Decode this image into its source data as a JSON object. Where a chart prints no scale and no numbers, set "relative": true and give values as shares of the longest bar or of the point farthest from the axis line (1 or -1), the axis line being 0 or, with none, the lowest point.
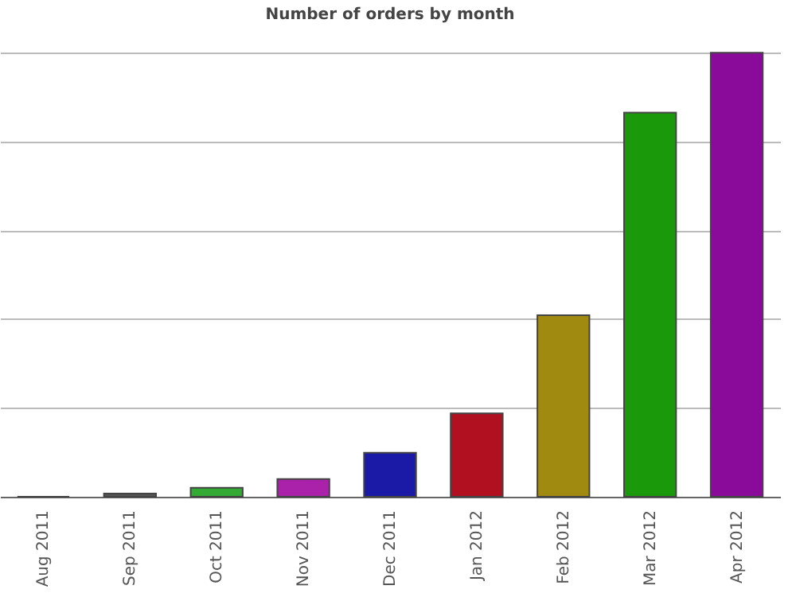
{
  "chart_data": {
    "type": "bar",
    "title": "Number of orders by month",
    "relative": true,
    "grid": "y",
    "categories": [
      "Aug 2011",
      "Sep 2011",
      "Oct 2011",
      "Nov 2011",
      "Dec 2011",
      "Jan 2012",
      "Feb 2012",
      "Mar 2012",
      "Apr 2012"
    ],
    "values": [
      0,
      0.007,
      0.02,
      0.04,
      0.099,
      0.188,
      0.409,
      0.865,
      1
    ],
    "colors": [
      "#444444",
      "#555555",
      "#33aa33",
      "#aa22aa",
      "#1a1aa6",
      "#b01020",
      "#a08a10",
      "#1a9a0a",
      "#8a0a9a"
    ]
  }
}
